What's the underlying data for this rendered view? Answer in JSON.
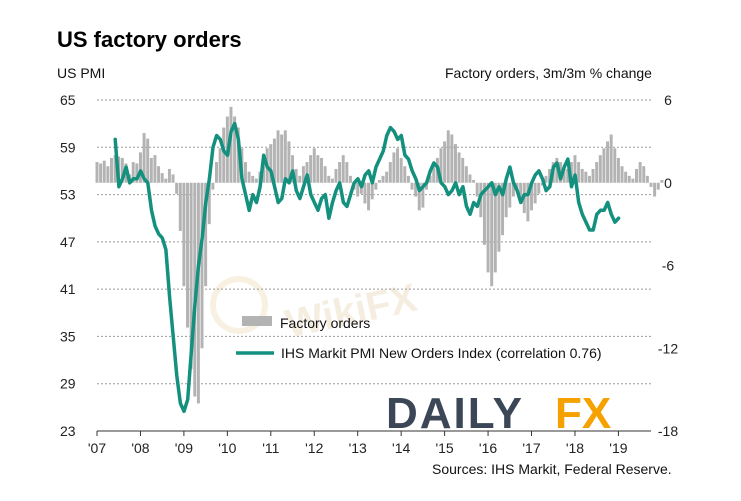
{
  "title": "US factory orders",
  "left_axis_unit": "US PMI",
  "right_axis_unit": "Factory orders, 3m/3m % change",
  "source": "Sources: IHS Markit, Federal Reserve.",
  "watermark": "WikiFX",
  "brand": {
    "part1": "DAILY",
    "part2": "FX",
    "color1": "#3b4657",
    "color2": "#f5a200"
  },
  "colors": {
    "line": "#14907e",
    "bars": "#b3b3b3",
    "grid": "#9a9a9a"
  },
  "chart_data": {
    "type": "bar+line",
    "xlim": [
      2007,
      2019.75
    ],
    "x_ticks": [
      "'07",
      "'08",
      "'09",
      "'10",
      "'11",
      "'12",
      "'13",
      "'14",
      "'15",
      "'16",
      "'17",
      "'18",
      "'19"
    ],
    "left_axis": {
      "label": "US PMI",
      "ylim": [
        23,
        65
      ],
      "ticks": [
        65,
        59,
        53,
        47,
        41,
        35,
        29,
        23
      ]
    },
    "right_axis": {
      "label": "Factory orders, 3m/3m % change",
      "ylim": [
        -18,
        6
      ],
      "ticks": [
        6,
        0,
        -6,
        -12,
        -18
      ]
    },
    "grid": true,
    "legend_position": "center-bottom",
    "series": [
      {
        "name": "Factory orders",
        "type": "bar",
        "axis": "right",
        "x_start": 2007.0,
        "step": 0.0833333,
        "values": [
          1.5,
          1.4,
          1.6,
          1.2,
          1.8,
          2.0,
          1.9,
          1.8,
          1.4,
          0.6,
          1.5,
          1.4,
          2.2,
          3.6,
          3.2,
          1.8,
          2.0,
          1.2,
          0.7,
          0.3,
          1.0,
          0.6,
          -0.8,
          -3.5,
          -7.5,
          -10.5,
          -13.5,
          -15.5,
          -16.0,
          -12.0,
          -7.5,
          -3.0,
          -0.5,
          1.5,
          2.5,
          4.0,
          4.8,
          5.5,
          4.8,
          4.0,
          2.5,
          1.5,
          0.8,
          0.5,
          0.3,
          0.8,
          1.8,
          2.5,
          2.8,
          3.2,
          3.8,
          3.5,
          3.8,
          3.0,
          2.0,
          1.0,
          0.5,
          1.2,
          1.5,
          2.0,
          2.5,
          2.0,
          1.8,
          1.2,
          0.5,
          0.3,
          1.0,
          1.5,
          2.0,
          1.5,
          0.5,
          -0.5,
          -1.0,
          -0.8,
          -1.5,
          -2.0,
          -1.2,
          -0.5,
          0.2,
          0.5,
          0.8,
          1.5,
          2.2,
          2.5,
          1.8,
          1.2,
          0.5,
          -0.5,
          -1.0,
          -2.0,
          -1.8,
          -0.5,
          0.5,
          1.2,
          1.8,
          2.5,
          3.0,
          3.8,
          3.5,
          2.8,
          2.2,
          1.8,
          1.2,
          0.6,
          0.2,
          -1.0,
          -2.5,
          -4.5,
          -6.5,
          -7.5,
          -6.5,
          -5.0,
          -3.8,
          -2.5,
          -1.8,
          -1.0,
          -0.5,
          -1.2,
          -2.2,
          -2.8,
          -2.0,
          -1.5,
          -0.8,
          -0.2,
          0.5,
          1.0,
          1.5,
          1.8,
          1.5,
          1.2,
          1.0,
          1.5,
          2.0,
          1.5,
          1.0,
          0.8,
          0.5,
          1.0,
          1.5,
          2.0,
          2.5,
          3.0,
          3.5,
          2.5,
          1.8,
          1.2,
          0.8,
          0.5,
          0.3,
          1.0,
          1.5,
          1.2,
          0.5,
          -0.3,
          -1.0,
          -0.5,
          0.2
        ]
      },
      {
        "name": "IHS Markit PMI New Orders Index (correlation 0.76)",
        "type": "line",
        "axis": "left",
        "x_start": 2007.42,
        "step": 0.0833333,
        "values": [
          60.0,
          54.0,
          55.0,
          56.5,
          54.5,
          55.0,
          55.0,
          56.0,
          55.0,
          54.5,
          51.0,
          49.0,
          48.0,
          47.5,
          46.0,
          40.0,
          35.0,
          30.0,
          26.5,
          25.5,
          27.0,
          33.0,
          39.0,
          44.0,
          47.5,
          52.0,
          55.0,
          59.0,
          60.5,
          60.0,
          58.5,
          58.0,
          61.0,
          62.0,
          60.0,
          55.0,
          53.0,
          51.0,
          53.0,
          52.0,
          54.0,
          58.0,
          56.5,
          56.0,
          54.0,
          52.0,
          52.5,
          55.0,
          54.5,
          56.0,
          53.5,
          52.5,
          54.0,
          55.5,
          53.0,
          52.0,
          51.0,
          52.5,
          53.0,
          50.0,
          52.0,
          53.5,
          54.5,
          52.0,
          51.5,
          53.0,
          54.5,
          55.0,
          54.0,
          55.5,
          56.0,
          54.5,
          56.5,
          57.5,
          58.5,
          60.5,
          61.5,
          61.0,
          60.0,
          60.5,
          58.0,
          57.5,
          56.0,
          55.0,
          53.5,
          54.0,
          54.5,
          56.0,
          57.0,
          56.5,
          54.5,
          54.0,
          53.0,
          53.5,
          54.5,
          53.0,
          54.0,
          51.5,
          50.5,
          52.0,
          51.5,
          53.0,
          53.5,
          54.0,
          54.5,
          53.0,
          54.0,
          53.0,
          55.0,
          56.5,
          54.5,
          53.5,
          52.0,
          53.0,
          53.0,
          54.5,
          55.5,
          56.0,
          55.0,
          53.5,
          54.0,
          56.5,
          57.0,
          55.0,
          56.5,
          57.5,
          54.0,
          55.5,
          52.0,
          50.5,
          49.5,
          48.5,
          48.5,
          50.5,
          51.0,
          51.0,
          52.0,
          50.5,
          49.5,
          50.0
        ]
      }
    ]
  }
}
